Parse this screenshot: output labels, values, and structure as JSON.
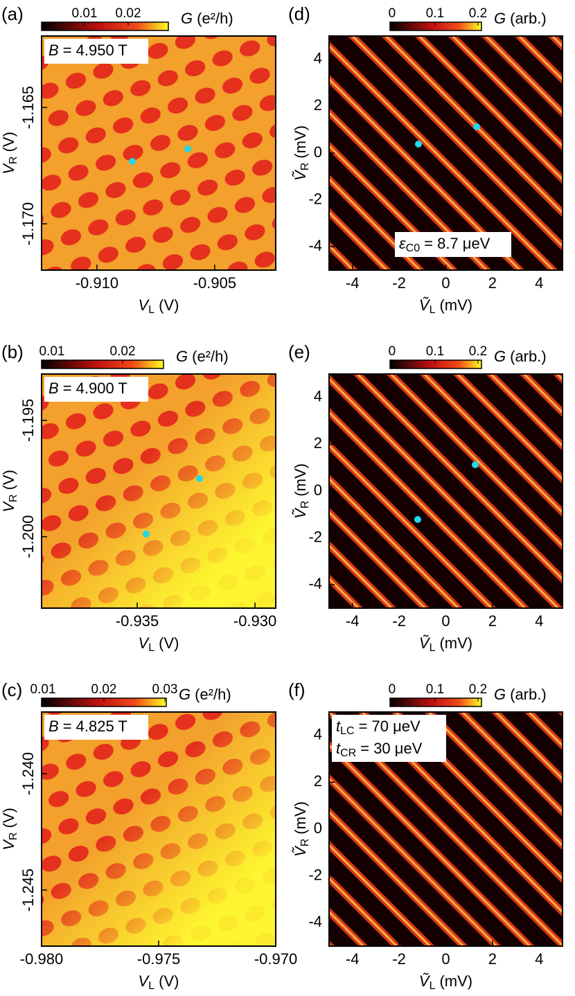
{
  "panels": [
    {
      "label": "(a)",
      "colorbar": {
        "symbol": "G",
        "unit": "(e²/h)",
        "lim": [
          0.00016,
          0.0292
        ],
        "ticks": [
          0.01,
          0.02
        ]
      },
      "annotation": [
        {
          "symbol": "B",
          "text": "= 4.950 T"
        }
      ],
      "x_axis": {
        "symbol": "V",
        "sub": "L",
        "unit": "(V)",
        "lim": [
          -0.91235,
          -0.90241
        ],
        "ticks": [
          {
            "value": -0.91,
            "label": "-0.910"
          },
          -0.905
        ]
      },
      "y_axis": {
        "symbol": "V",
        "sub": "R",
        "unit": "(V)",
        "lim": [
          -1.17199,
          -1.16193
        ],
        "ticks": [
          -1.165,
          {
            "value": -1.17,
            "label": "-1.170"
          }
        ]
      }
    },
    {
      "label": "(d)",
      "colorbar": {
        "symbol": "G",
        "unit": "(arb.)",
        "lim": [
          -0.0048,
          0.2081
        ],
        "ticks": [
          0,
          0.1,
          0.2
        ]
      },
      "annotation": [
        {
          "symbol": "ε",
          "sub": "C0",
          "text": "= 8.7 μeV"
        }
      ],
      "x_axis": {
        "symbol": "Ṽ",
        "sub": "L",
        "unit": "(mV)",
        "lim": [
          -5,
          5
        ],
        "ticks": [
          -4,
          -2,
          0,
          2,
          4
        ]
      },
      "y_axis": {
        "symbol": "Ṽ",
        "sub": "R",
        "unit": "(mV)",
        "lim": [
          -5,
          5
        ],
        "ticks": [
          -4,
          -2,
          0,
          2,
          4
        ]
      }
    },
    {
      "label": "(b)",
      "colorbar": {
        "symbol": "G",
        "unit": "(e²/h)",
        "lim": [
          0.00853,
          0.02578
        ],
        "ticks": [
          0.01,
          0.02
        ]
      },
      "annotation": [
        {
          "symbol": "B",
          "text": "= 4.900 T"
        }
      ],
      "x_axis": {
        "symbol": "V",
        "sub": "L",
        "unit": "(V)",
        "lim": [
          -0.93906,
          -0.92912
        ],
        "ticks": [
          -0.935,
          {
            "value": -0.93,
            "label": "-0.930"
          }
        ]
      },
      "y_axis": {
        "symbol": "V",
        "sub": "R",
        "unit": "(V)",
        "lim": [
          -1.20307,
          -1.19301
        ],
        "ticks": [
          -1.195,
          {
            "value": -1.2,
            "label": "-1.200"
          }
        ]
      }
    },
    {
      "label": "(e)",
      "colorbar": {
        "symbol": "G",
        "unit": "(arb.)",
        "lim": [
          -0.0048,
          0.2081
        ],
        "ticks": [
          0,
          0.1,
          0.2
        ]
      },
      "annotation": [],
      "x_axis": {
        "symbol": "Ṽ",
        "sub": "L",
        "unit": "(mV)",
        "lim": [
          -5,
          5
        ],
        "ticks": [
          -4,
          -2,
          0,
          2,
          4
        ]
      },
      "y_axis": {
        "symbol": "Ṽ",
        "sub": "R",
        "unit": "(mV)",
        "lim": [
          -5,
          5
        ],
        "ticks": [
          -4,
          -2,
          0,
          2,
          4
        ]
      }
    },
    {
      "label": "(c)",
      "colorbar": {
        "symbol": "G",
        "unit": "(e²/h)",
        "lim": [
          0.00977,
          0.03023
        ],
        "ticks": [
          0.01,
          0.02,
          0.03
        ]
      },
      "annotation": [
        {
          "symbol": "B",
          "text": "= 4.825 T"
        }
      ],
      "x_axis": {
        "symbol": "V",
        "sub": "L",
        "unit": "(V)",
        "lim": [
          -0.98,
          -0.97
        ],
        "ticks": [
          {
            "value": -0.98,
            "label": "-0.980"
          },
          -0.975,
          {
            "value": -0.97,
            "label": "-0.970"
          }
        ]
      },
      "y_axis": {
        "symbol": "V",
        "sub": "R",
        "unit": "(V)",
        "lim": [
          -1.24741,
          -1.23735
        ],
        "ticks": [
          {
            "value": -1.24,
            "label": "-1.240"
          },
          -1.245
        ]
      }
    },
    {
      "label": "(f)",
      "colorbar": {
        "symbol": "G",
        "unit": "(arb.)",
        "lim": [
          -0.0048,
          0.2081
        ],
        "ticks": [
          0,
          0.1,
          0.2
        ]
      },
      "annotation": [
        {
          "symbol": "t",
          "sub": "LC",
          "text": "= 70 μeV"
        },
        {
          "symbol": "t",
          "sub": "CR",
          "text": "= 30 μeV"
        }
      ],
      "x_axis": {
        "symbol": "Ṽ",
        "sub": "L",
        "unit": "(mV)",
        "lim": [
          -5,
          5
        ],
        "ticks": [
          -4,
          -2,
          0,
          2,
          4
        ]
      },
      "y_axis": {
        "symbol": "Ṽ",
        "sub": "R",
        "unit": "(mV)",
        "lim": [
          -5,
          5
        ],
        "ticks": [
          -4,
          -2,
          0,
          2,
          4
        ]
      }
    }
  ]
}
